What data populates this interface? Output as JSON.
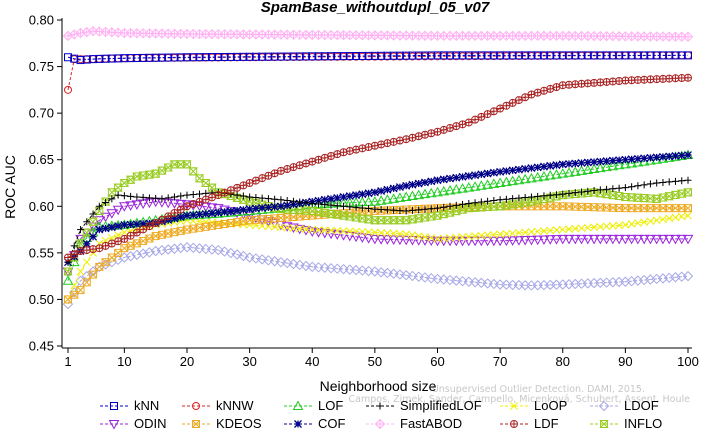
{
  "chart_data": {
    "type": "line",
    "title": "SpamBase_withoutdupl_05_v07",
    "xlabel": "Neighborhood size",
    "ylabel": "ROC AUC",
    "xlim": [
      1,
      100
    ],
    "ylim": [
      0.45,
      0.8
    ],
    "xticks": [
      1,
      10,
      20,
      30,
      40,
      50,
      60,
      70,
      80,
      90,
      100
    ],
    "yticks": [
      0.45,
      0.5,
      0.55,
      0.6,
      0.65,
      0.7,
      0.75,
      0.8
    ],
    "grid": false,
    "legend_position": "bottom",
    "watermark": [
      "Campos, Zimek, Sander, Campello, Micenková, Schubert, Assent, Houle",
      "Unsupervised Outlier Detection. DAMI, 2015."
    ],
    "series": [
      {
        "name": "kNN",
        "color": "#0000cc",
        "marker": "square",
        "points": [
          [
            1,
            0.76
          ],
          [
            3,
            0.757
          ],
          [
            5,
            0.758
          ],
          [
            10,
            0.759
          ],
          [
            20,
            0.76
          ],
          [
            40,
            0.761
          ],
          [
            60,
            0.762
          ],
          [
            80,
            0.762
          ],
          [
            100,
            0.762
          ]
        ]
      },
      {
        "name": "kNNW",
        "color": "#dd2222",
        "marker": "circle",
        "points": [
          [
            1,
            0.725
          ],
          [
            2,
            0.758
          ],
          [
            4,
            0.758
          ],
          [
            10,
            0.759
          ],
          [
            30,
            0.76
          ],
          [
            60,
            0.761
          ],
          [
            100,
            0.762
          ]
        ]
      },
      {
        "name": "LOF",
        "color": "#22cc22",
        "marker": "triangle-up",
        "points": [
          [
            1,
            0.52
          ],
          [
            3,
            0.56
          ],
          [
            6,
            0.578
          ],
          [
            10,
            0.58
          ],
          [
            15,
            0.585
          ],
          [
            20,
            0.59
          ],
          [
            25,
            0.592
          ],
          [
            30,
            0.595
          ],
          [
            35,
            0.598
          ],
          [
            40,
            0.602
          ],
          [
            50,
            0.605
          ],
          [
            60,
            0.615
          ],
          [
            70,
            0.625
          ],
          [
            80,
            0.635
          ],
          [
            90,
            0.645
          ],
          [
            100,
            0.655
          ]
        ]
      },
      {
        "name": "SimplifiedLOF",
        "color": "#000000",
        "marker": "plus",
        "points": [
          [
            1,
            0.54
          ],
          [
            3,
            0.575
          ],
          [
            6,
            0.6
          ],
          [
            9,
            0.612
          ],
          [
            12,
            0.61
          ],
          [
            16,
            0.608
          ],
          [
            20,
            0.612
          ],
          [
            25,
            0.615
          ],
          [
            30,
            0.61
          ],
          [
            35,
            0.607
          ],
          [
            40,
            0.603
          ],
          [
            45,
            0.6
          ],
          [
            50,
            0.597
          ],
          [
            55,
            0.595
          ],
          [
            60,
            0.598
          ],
          [
            65,
            0.603
          ],
          [
            70,
            0.607
          ],
          [
            75,
            0.61
          ],
          [
            80,
            0.613
          ],
          [
            85,
            0.617
          ],
          [
            90,
            0.62
          ],
          [
            95,
            0.625
          ],
          [
            100,
            0.628
          ]
        ]
      },
      {
        "name": "LoOP",
        "color": "#eeee00",
        "marker": "x",
        "points": [
          [
            1,
            0.5
          ],
          [
            3,
            0.53
          ],
          [
            6,
            0.56
          ],
          [
            10,
            0.572
          ],
          [
            15,
            0.58
          ],
          [
            20,
            0.585
          ],
          [
            25,
            0.582
          ],
          [
            30,
            0.58
          ],
          [
            40,
            0.575
          ],
          [
            50,
            0.572
          ],
          [
            55,
            0.57
          ],
          [
            60,
            0.565
          ],
          [
            70,
            0.57
          ],
          [
            80,
            0.575
          ],
          [
            90,
            0.58
          ],
          [
            100,
            0.59
          ]
        ]
      },
      {
        "name": "LDOF",
        "color": "#a8a8e8",
        "marker": "diamond",
        "points": [
          [
            1,
            0.495
          ],
          [
            3,
            0.52
          ],
          [
            6,
            0.535
          ],
          [
            10,
            0.545
          ],
          [
            15,
            0.552
          ],
          [
            20,
            0.556
          ],
          [
            25,
            0.553
          ],
          [
            30,
            0.545
          ],
          [
            35,
            0.54
          ],
          [
            40,
            0.535
          ],
          [
            50,
            0.53
          ],
          [
            60,
            0.522
          ],
          [
            70,
            0.516
          ],
          [
            75,
            0.515
          ],
          [
            80,
            0.516
          ],
          [
            90,
            0.519
          ],
          [
            100,
            0.525
          ]
        ]
      },
      {
        "name": "ODIN",
        "color": "#9922dd",
        "marker": "triangle-down",
        "points": [
          [
            1,
            0.53
          ],
          [
            3,
            0.565
          ],
          [
            6,
            0.585
          ],
          [
            10,
            0.6
          ],
          [
            15,
            0.605
          ],
          [
            20,
            0.602
          ],
          [
            25,
            0.598
          ],
          [
            30,
            0.59
          ],
          [
            35,
            0.58
          ],
          [
            40,
            0.573
          ],
          [
            50,
            0.565
          ],
          [
            60,
            0.563
          ],
          [
            70,
            0.563
          ],
          [
            80,
            0.565
          ],
          [
            90,
            0.565
          ],
          [
            100,
            0.565
          ]
        ]
      },
      {
        "name": "KDEOS",
        "color": "#eeaa22",
        "marker": "square-x",
        "points": [
          [
            1,
            0.5
          ],
          [
            3,
            0.51
          ],
          [
            6,
            0.535
          ],
          [
            10,
            0.555
          ],
          [
            15,
            0.568
          ],
          [
            20,
            0.575
          ],
          [
            25,
            0.58
          ],
          [
            30,
            0.585
          ],
          [
            40,
            0.59
          ],
          [
            50,
            0.595
          ],
          [
            60,
            0.598
          ],
          [
            70,
            0.6
          ],
          [
            80,
            0.6
          ],
          [
            90,
            0.598
          ],
          [
            100,
            0.598
          ]
        ]
      },
      {
        "name": "COF",
        "color": "#000088",
        "marker": "asterisk",
        "points": [
          [
            1,
            0.54
          ],
          [
            3,
            0.552
          ],
          [
            6,
            0.575
          ],
          [
            10,
            0.58
          ],
          [
            15,
            0.582
          ],
          [
            20,
            0.59
          ],
          [
            25,
            0.593
          ],
          [
            30,
            0.597
          ],
          [
            35,
            0.6
          ],
          [
            40,
            0.605
          ],
          [
            45,
            0.61
          ],
          [
            50,
            0.615
          ],
          [
            55,
            0.622
          ],
          [
            60,
            0.628
          ],
          [
            70,
            0.637
          ],
          [
            80,
            0.645
          ],
          [
            90,
            0.65
          ],
          [
            100,
            0.655
          ]
        ]
      },
      {
        "name": "FastABOD",
        "color": "#ffb0f4",
        "marker": "diamond-plus",
        "points": [
          [
            1,
            0.783
          ],
          [
            3,
            0.786
          ],
          [
            5,
            0.788
          ],
          [
            10,
            0.786
          ],
          [
            20,
            0.785
          ],
          [
            40,
            0.784
          ],
          [
            60,
            0.783
          ],
          [
            80,
            0.783
          ],
          [
            100,
            0.782
          ]
        ]
      },
      {
        "name": "LDF",
        "color": "#aa2222",
        "marker": "circle-plus",
        "points": [
          [
            1,
            0.545
          ],
          [
            3,
            0.552
          ],
          [
            6,
            0.555
          ],
          [
            10,
            0.565
          ],
          [
            15,
            0.582
          ],
          [
            20,
            0.6
          ],
          [
            25,
            0.612
          ],
          [
            30,
            0.625
          ],
          [
            35,
            0.638
          ],
          [
            40,
            0.648
          ],
          [
            45,
            0.658
          ],
          [
            50,
            0.665
          ],
          [
            55,
            0.672
          ],
          [
            60,
            0.68
          ],
          [
            65,
            0.69
          ],
          [
            70,
            0.705
          ],
          [
            75,
            0.72
          ],
          [
            80,
            0.73
          ],
          [
            90,
            0.735
          ],
          [
            100,
            0.738
          ]
        ]
      },
      {
        "name": "INFLO",
        "color": "#99cc22",
        "marker": "hourglass",
        "points": [
          [
            1,
            0.53
          ],
          [
            3,
            0.56
          ],
          [
            6,
            0.595
          ],
          [
            8,
            0.615
          ],
          [
            10,
            0.625
          ],
          [
            12,
            0.632
          ],
          [
            15,
            0.635
          ],
          [
            18,
            0.645
          ],
          [
            20,
            0.645
          ],
          [
            22,
            0.63
          ],
          [
            25,
            0.615
          ],
          [
            30,
            0.605
          ],
          [
            35,
            0.597
          ],
          [
            40,
            0.595
          ],
          [
            45,
            0.59
          ],
          [
            50,
            0.585
          ],
          [
            55,
            0.585
          ],
          [
            60,
            0.59
          ],
          [
            65,
            0.598
          ],
          [
            70,
            0.6
          ],
          [
            75,
            0.605
          ],
          [
            80,
            0.612
          ],
          [
            85,
            0.615
          ],
          [
            90,
            0.61
          ],
          [
            95,
            0.608
          ],
          [
            100,
            0.615
          ]
        ]
      }
    ],
    "legend_rows": [
      [
        "kNN",
        "kNNW",
        "LOF",
        "SimplifiedLOF",
        "LoOP",
        "LDOF"
      ],
      [
        "ODIN",
        "KDEOS",
        "COF",
        "FastABOD",
        "LDF",
        "INFLO"
      ]
    ]
  }
}
